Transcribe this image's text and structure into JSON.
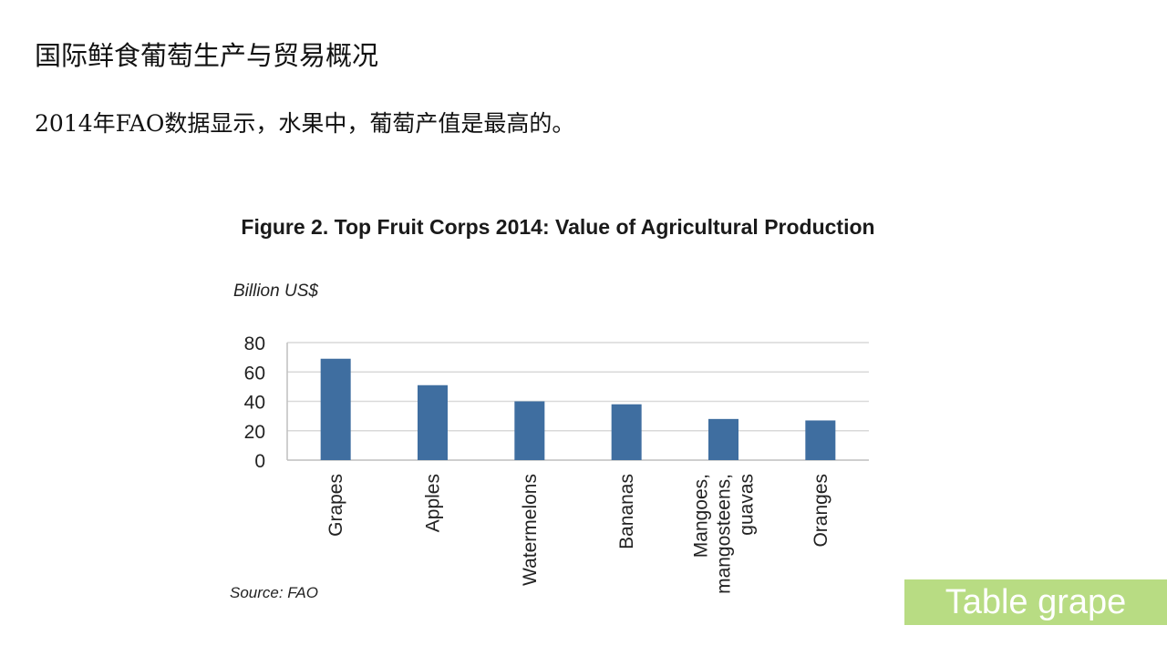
{
  "slide": {
    "title": "国际鲜食葡萄生产与贸易概况",
    "subtitle": "2014年FAO数据显示，水果中，葡萄产值是最高的。",
    "tag": "Table grape"
  },
  "colors": {
    "bar": "#3f6ea0",
    "grid": "#d9d9d9",
    "axis": "#bfbfbf",
    "tag_bg": "#b8dc83"
  },
  "chart_data": {
    "type": "bar",
    "title": "Figure 2. Top Fruit Corps 2014: Value of Agricultural Production",
    "ylabel": "Billion  US$",
    "source": "Source: FAO",
    "ylim": [
      0,
      80
    ],
    "yticks": [
      0,
      20,
      40,
      60,
      80
    ],
    "grid": true,
    "categories": [
      [
        "Grapes"
      ],
      [
        "Apples"
      ],
      [
        "Watermelons"
      ],
      [
        "Bananas"
      ],
      [
        "Mangoes,",
        "mangosteens,",
        "guavas"
      ],
      [
        "Oranges"
      ]
    ],
    "values": [
      69,
      51,
      40,
      38,
      28,
      27
    ]
  }
}
